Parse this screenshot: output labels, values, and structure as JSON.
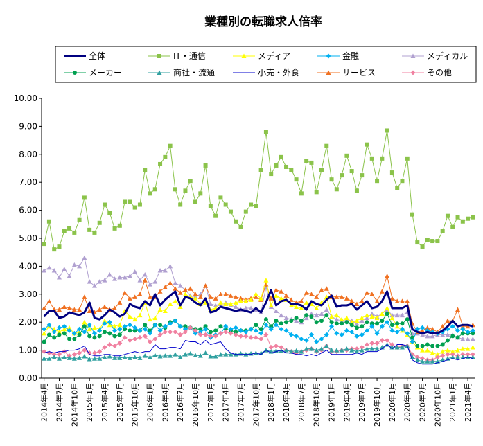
{
  "chart_data": {
    "type": "line",
    "title": "業種別の転職求人倍率",
    "xlabel": "",
    "ylabel": "",
    "ylim": [
      0,
      10
    ],
    "y_ticks": [
      "0.00",
      "1.00",
      "2.00",
      "3.00",
      "4.00",
      "5.00",
      "6.00",
      "7.00",
      "8.00",
      "9.00",
      "10.00"
    ],
    "grid": false,
    "legend_position": "top",
    "x_ticks": [
      {
        "index": 0,
        "label": "2014年4月"
      },
      {
        "index": 3,
        "label": "2014年7月"
      },
      {
        "index": 6,
        "label": "2014年10月"
      },
      {
        "index": 9,
        "label": "2015年1月"
      },
      {
        "index": 12,
        "label": "2015年4月"
      },
      {
        "index": 15,
        "label": "2015年7月"
      },
      {
        "index": 18,
        "label": "2015年10月"
      },
      {
        "index": 21,
        "label": "2016年1月"
      },
      {
        "index": 24,
        "label": "2016年4月"
      },
      {
        "index": 27,
        "label": "2016年7月"
      },
      {
        "index": 30,
        "label": "2016年10月"
      },
      {
        "index": 33,
        "label": "2017年1月"
      },
      {
        "index": 36,
        "label": "2017年4月"
      },
      {
        "index": 39,
        "label": "2017年7月"
      },
      {
        "index": 42,
        "label": "2017年10月"
      },
      {
        "index": 45,
        "label": "2018年1月"
      },
      {
        "index": 48,
        "label": "2018年4月"
      },
      {
        "index": 51,
        "label": "2018年7月"
      },
      {
        "index": 54,
        "label": "2018年10月"
      },
      {
        "index": 57,
        "label": "2019年1月"
      },
      {
        "index": 60,
        "label": "2019年4月"
      },
      {
        "index": 63,
        "label": "2019年7月"
      },
      {
        "index": 66,
        "label": "2019年10月"
      },
      {
        "index": 69,
        "label": "2020年1月"
      },
      {
        "index": 72,
        "label": "2020年4月"
      },
      {
        "index": 75,
        "label": "2020年7月"
      },
      {
        "index": 78,
        "label": "2020年10月"
      },
      {
        "index": 81,
        "label": "2021年1月"
      },
      {
        "index": 84,
        "label": "2021年4月"
      }
    ],
    "series": [
      {
        "name": "全体",
        "color": "#000080",
        "marker": "line",
        "width": 3,
        "values": [
          2.2,
          2.4,
          2.4,
          2.15,
          2.2,
          2.35,
          2.3,
          2.25,
          2.35,
          2.7,
          2.15,
          2.1,
          2.25,
          2.45,
          2.35,
          2.2,
          2.3,
          2.65,
          2.55,
          2.5,
          2.75,
          2.6,
          3.0,
          2.6,
          2.8,
          2.95,
          3.1,
          2.6,
          2.9,
          2.85,
          2.7,
          2.6,
          2.85,
          2.35,
          2.4,
          2.55,
          2.5,
          2.45,
          2.4,
          2.45,
          2.4,
          2.35,
          2.5,
          2.35,
          2.7,
          3.15,
          2.6,
          2.75,
          2.8,
          2.65,
          2.65,
          2.6,
          2.45,
          2.75,
          2.65,
          2.6,
          2.8,
          2.95,
          2.55,
          2.6,
          2.6,
          2.65,
          2.45,
          2.6,
          2.75,
          2.5,
          2.55,
          2.75,
          3.1,
          2.5,
          2.5,
          2.5,
          2.6,
          1.75,
          1.65,
          1.6,
          1.65,
          1.6,
          1.6,
          1.7,
          1.85,
          2.05,
          1.85,
          1.9,
          1.9,
          1.85
        ]
      },
      {
        "name": "IT・通信",
        "color": "#8BC34A",
        "marker": "square",
        "values": [
          4.8,
          5.6,
          4.6,
          4.7,
          5.25,
          5.35,
          5.2,
          5.65,
          6.45,
          5.3,
          5.2,
          5.55,
          6.2,
          5.9,
          5.35,
          5.45,
          6.3,
          6.3,
          6.1,
          6.2,
          7.45,
          6.6,
          6.75,
          7.65,
          7.9,
          8.3,
          6.75,
          6.2,
          6.7,
          7.05,
          6.3,
          6.6,
          7.6,
          6.15,
          5.8,
          6.45,
          6.2,
          5.95,
          5.6,
          5.4,
          5.95,
          6.2,
          6.15,
          7.45,
          8.8,
          7.3,
          7.6,
          7.9,
          7.55,
          7.45,
          7.1,
          6.6,
          7.75,
          7.7,
          6.65,
          7.45,
          8.3,
          7.1,
          6.75,
          7.25,
          7.95,
          7.4,
          6.7,
          7.25,
          8.35,
          7.85,
          7.05,
          7.85,
          8.85,
          7.35,
          6.8,
          7.05,
          7.85,
          5.85,
          4.85,
          4.7,
          4.95,
          4.9,
          4.9,
          5.25,
          5.8,
          5.4,
          5.75,
          5.6,
          5.7,
          5.75
        ]
      },
      {
        "name": "メディア",
        "color": "#FFFF00",
        "marker": "triangle",
        "values": [
          1.6,
          1.85,
          1.75,
          1.65,
          1.75,
          1.8,
          1.6,
          1.65,
          2.0,
          1.75,
          1.8,
          1.75,
          2.05,
          1.9,
          1.85,
          1.9,
          2.4,
          2.2,
          2.1,
          2.25,
          2.7,
          2.1,
          2.15,
          2.45,
          2.4,
          2.65,
          2.75,
          2.55,
          3.0,
          2.9,
          2.85,
          2.65,
          2.7,
          2.45,
          2.5,
          2.7,
          2.65,
          2.65,
          2.7,
          2.75,
          2.75,
          2.8,
          3.0,
          2.85,
          3.5,
          2.6,
          2.95,
          2.85,
          2.8,
          2.6,
          2.55,
          2.5,
          2.7,
          2.65,
          2.5,
          2.7,
          2.9,
          2.2,
          2.25,
          2.1,
          2.15,
          2.0,
          2.05,
          2.15,
          2.25,
          2.2,
          2.15,
          2.3,
          2.5,
          2.15,
          1.85,
          1.7,
          1.55,
          1.3,
          1.1,
          1.0,
          1.0,
          0.9,
          0.85,
          0.95,
          1.0,
          0.95,
          1.0,
          1.05,
          1.05,
          1.1
        ]
      },
      {
        "name": "金融",
        "color": "#00B0F0",
        "marker": "diamond",
        "values": [
          1.75,
          1.9,
          1.65,
          1.8,
          1.85,
          1.7,
          1.6,
          1.75,
          1.65,
          1.9,
          1.6,
          1.7,
          1.95,
          2.0,
          1.7,
          1.75,
          1.85,
          1.9,
          1.8,
          1.7,
          1.75,
          1.6,
          1.9,
          1.7,
          1.85,
          1.95,
          2.05,
          1.85,
          1.75,
          1.8,
          1.6,
          1.65,
          1.75,
          1.45,
          1.55,
          1.6,
          1.85,
          1.75,
          1.8,
          1.7,
          1.65,
          1.75,
          1.7,
          1.6,
          1.9,
          1.75,
          1.9,
          1.75,
          1.7,
          1.55,
          1.5,
          1.4,
          1.35,
          1.55,
          1.3,
          1.4,
          1.55,
          1.85,
          1.6,
          1.55,
          1.7,
          1.65,
          1.5,
          1.55,
          1.7,
          1.85,
          1.6,
          1.85,
          2.0,
          1.7,
          1.65,
          1.75,
          1.6,
          1.3,
          1.75,
          1.8,
          1.7,
          1.65,
          1.6,
          1.65,
          1.75,
          1.85,
          1.7,
          1.75,
          1.65,
          1.7
        ]
      },
      {
        "name": "メディカル",
        "color": "#B0A0D0",
        "marker": "triangle",
        "values": [
          3.85,
          3.95,
          3.85,
          3.6,
          3.9,
          3.65,
          4.05,
          4.0,
          4.3,
          3.45,
          3.3,
          3.45,
          3.5,
          3.7,
          3.55,
          3.6,
          3.6,
          3.65,
          3.8,
          3.5,
          3.7,
          3.35,
          3.45,
          3.85,
          3.85,
          4.0,
          3.4,
          3.3,
          3.15,
          2.95,
          2.9,
          3.0,
          3.3,
          2.65,
          2.6,
          2.65,
          2.7,
          2.6,
          2.55,
          2.45,
          2.5,
          2.5,
          2.45,
          2.35,
          3.25,
          2.55,
          2.4,
          2.25,
          2.15,
          2.1,
          2.05,
          2.0,
          2.15,
          2.3,
          2.25,
          2.3,
          2.45,
          2.2,
          2.1,
          2.05,
          2.1,
          2.05,
          1.95,
          2.05,
          2.15,
          2.3,
          2.2,
          2.3,
          2.45,
          2.25,
          2.25,
          2.25,
          2.35,
          1.6,
          1.6,
          1.55,
          1.5,
          1.5,
          1.55,
          1.55,
          1.55,
          1.55,
          1.45,
          1.4,
          1.4,
          1.4
        ]
      },
      {
        "name": "メーカー",
        "color": "#00A050",
        "marker": "circle",
        "values": [
          1.3,
          1.55,
          1.45,
          1.55,
          1.6,
          1.4,
          1.4,
          1.55,
          1.85,
          1.5,
          1.45,
          1.5,
          1.65,
          1.6,
          1.5,
          1.55,
          1.75,
          1.7,
          1.7,
          1.7,
          1.9,
          1.7,
          1.9,
          1.9,
          1.8,
          2.0,
          2.05,
          1.85,
          1.85,
          1.8,
          1.75,
          1.75,
          1.85,
          1.65,
          1.7,
          1.85,
          1.75,
          1.7,
          1.65,
          1.7,
          1.7,
          1.75,
          1.9,
          1.75,
          2.1,
          1.85,
          2.05,
          1.95,
          2.0,
          2.05,
          2.15,
          2.05,
          2.25,
          2.2,
          2.0,
          2.05,
          2.25,
          2.0,
          1.95,
          1.95,
          2.0,
          1.9,
          1.8,
          1.85,
          2.0,
          1.95,
          1.95,
          2.05,
          2.3,
          1.9,
          1.95,
          1.95,
          2.1,
          1.45,
          1.15,
          1.15,
          1.2,
          1.15,
          1.15,
          1.2,
          1.35,
          1.5,
          1.45,
          1.6,
          1.6,
          1.6
        ]
      },
      {
        "name": "商社・流通",
        "color": "#30A0A0",
        "marker": "triangle",
        "values": [
          0.7,
          0.7,
          0.75,
          0.7,
          0.75,
          0.72,
          0.7,
          0.72,
          0.78,
          0.68,
          0.7,
          0.7,
          0.75,
          0.78,
          0.72,
          0.72,
          0.75,
          0.72,
          0.75,
          0.72,
          0.8,
          0.75,
          0.82,
          0.78,
          0.8,
          0.8,
          0.85,
          0.75,
          0.85,
          0.88,
          0.82,
          0.8,
          0.9,
          0.78,
          0.78,
          0.85,
          0.85,
          0.85,
          0.85,
          0.88,
          0.85,
          0.88,
          0.9,
          0.9,
          1.0,
          0.95,
          0.98,
          0.98,
          1.0,
          0.95,
          0.98,
          0.95,
          1.05,
          1.05,
          1.0,
          1.05,
          1.15,
          1.0,
          1.0,
          1.0,
          1.05,
          1.0,
          0.95,
          1.0,
          1.05,
          1.05,
          1.05,
          1.1,
          1.2,
          1.1,
          1.1,
          1.1,
          1.15,
          0.75,
          0.65,
          0.6,
          0.6,
          0.6,
          0.6,
          0.65,
          0.7,
          0.75,
          0.75,
          0.75,
          0.75,
          0.75
        ]
      },
      {
        "name": "小売・外食",
        "color": "#0000CC",
        "marker": "line",
        "values": [
          0.9,
          0.95,
          0.9,
          0.95,
          0.95,
          1.0,
          1.0,
          1.05,
          1.15,
          0.85,
          0.8,
          0.8,
          0.85,
          0.85,
          0.8,
          0.8,
          0.85,
          0.9,
          0.95,
          0.9,
          0.95,
          0.95,
          1.2,
          1.05,
          1.05,
          1.1,
          1.1,
          1.05,
          1.35,
          1.3,
          1.3,
          1.2,
          1.35,
          1.2,
          1.25,
          1.3,
          1.05,
          0.9,
          0.85,
          0.85,
          0.85,
          0.85,
          0.9,
          0.85,
          1.0,
          0.9,
          0.95,
          1.0,
          0.9,
          0.9,
          0.85,
          0.85,
          0.8,
          0.85,
          0.8,
          0.9,
          1.0,
          0.85,
          0.85,
          0.85,
          0.85,
          0.85,
          0.9,
          0.85,
          0.95,
          0.95,
          0.95,
          1.05,
          1.2,
          1.05,
          1.2,
          1.2,
          1.15,
          0.65,
          0.55,
          0.5,
          0.5,
          0.5,
          0.55,
          0.6,
          0.65,
          0.7,
          0.65,
          0.7,
          0.75,
          0.7
        ]
      },
      {
        "name": "サービス",
        "color": "#F07020",
        "marker": "triangle",
        "values": [
          2.5,
          2.75,
          2.45,
          2.45,
          2.55,
          2.5,
          2.45,
          2.45,
          2.9,
          2.4,
          2.35,
          2.45,
          2.55,
          2.45,
          2.5,
          2.7,
          3.05,
          2.85,
          2.9,
          3.0,
          3.5,
          2.9,
          2.9,
          3.1,
          3.25,
          3.4,
          3.2,
          3.05,
          3.15,
          3.2,
          3.0,
          2.9,
          3.3,
          2.9,
          2.85,
          3.0,
          3.0,
          2.95,
          2.9,
          2.85,
          2.8,
          2.85,
          2.9,
          2.8,
          3.35,
          2.85,
          3.15,
          3.1,
          2.95,
          2.8,
          2.7,
          2.75,
          3.05,
          3.0,
          2.9,
          3.15,
          3.2,
          2.9,
          2.9,
          2.9,
          2.85,
          2.75,
          2.65,
          2.75,
          3.05,
          3.0,
          2.75,
          3.1,
          3.65,
          2.85,
          2.75,
          2.75,
          2.75,
          1.95,
          1.65,
          1.7,
          1.8,
          1.75,
          1.65,
          1.85,
          2.05,
          2.05,
          2.45,
          1.85,
          1.85,
          1.9
        ]
      },
      {
        "name": "その他",
        "color": "#F080A0",
        "marker": "diamond",
        "values": [
          0.95,
          0.9,
          0.85,
          0.85,
          0.95,
          0.8,
          0.85,
          0.9,
          1.0,
          0.9,
          0.9,
          0.95,
          1.1,
          1.2,
          1.15,
          1.25,
          1.45,
          1.35,
          1.4,
          1.45,
          1.5,
          1.3,
          1.4,
          1.55,
          1.65,
          1.65,
          1.65,
          1.55,
          1.65,
          1.8,
          1.7,
          1.55,
          1.55,
          1.5,
          1.5,
          1.6,
          1.65,
          1.6,
          1.55,
          1.5,
          1.5,
          1.45,
          1.45,
          1.4,
          1.55,
          1.1,
          1.15,
          1.1,
          1.0,
          0.95,
          0.9,
          0.95,
          1.0,
          1.05,
          0.95,
          1.0,
          1.15,
          0.95,
          0.95,
          1.0,
          1.0,
          1.05,
          1.05,
          1.1,
          1.2,
          1.25,
          1.25,
          1.35,
          1.35,
          1.2,
          1.1,
          1.15,
          1.15,
          0.85,
          0.75,
          0.7,
          0.65,
          0.65,
          0.75,
          0.8,
          0.85,
          0.85,
          0.8,
          0.85,
          0.85,
          0.85
        ]
      }
    ]
  }
}
